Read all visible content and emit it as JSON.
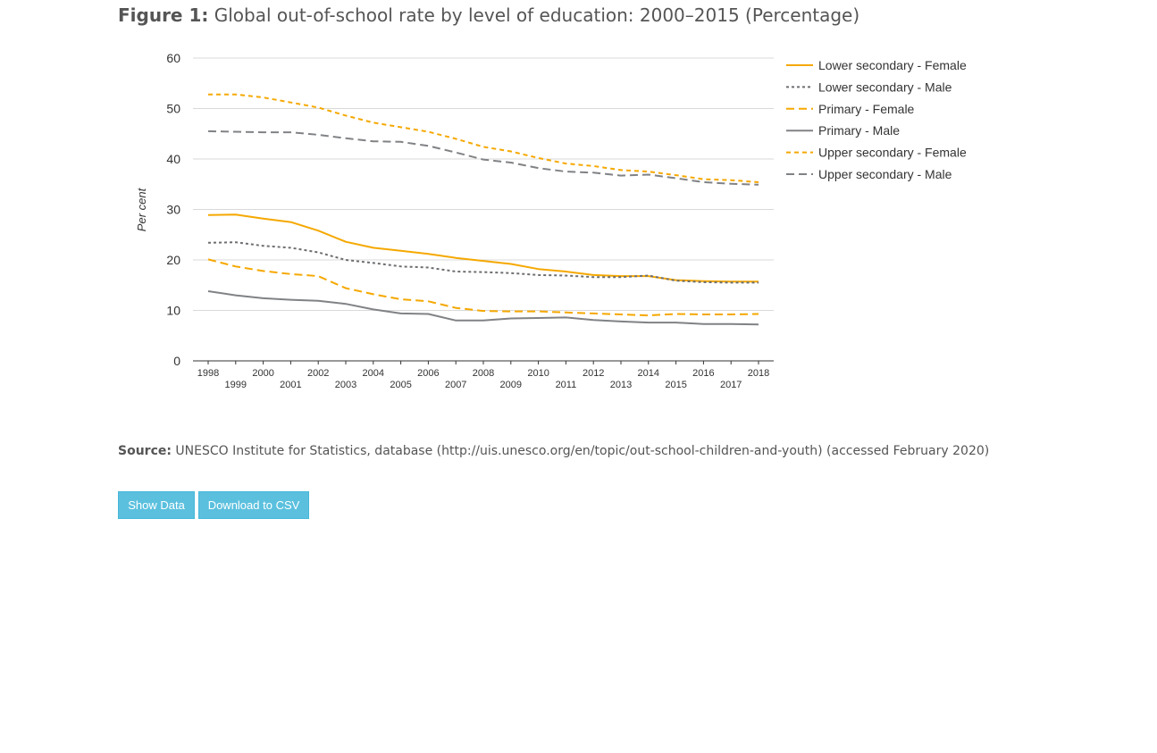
{
  "header": {
    "figure_label": "Figure 1:",
    "figure_title": "Global out-of-school rate by level of education: 2000–2015 (Percentage)"
  },
  "source": {
    "label": "Source:",
    "text": "UNESCO Institute for Statistics, database (http://uis.unesco.org/en/topic/out-school-children-and-youth) (accessed February 2020)"
  },
  "buttons": {
    "show_data": "Show Data",
    "download_csv": "Download to CSV"
  },
  "chart_data": {
    "type": "line",
    "title": "",
    "xlabel": "",
    "ylabel": "Per cent",
    "xlim": [
      1998,
      2018
    ],
    "ylim": [
      0,
      60
    ],
    "yticks": [
      0,
      10,
      20,
      30,
      40,
      50,
      60
    ],
    "x": [
      1998,
      1999,
      2000,
      2001,
      2002,
      2003,
      2004,
      2005,
      2006,
      2007,
      2008,
      2009,
      2010,
      2011,
      2012,
      2013,
      2014,
      2015,
      2016,
      2017,
      2018
    ],
    "grid": "horizontal",
    "legend_position": "right",
    "series": [
      {
        "name": "Lower secondary - Female",
        "color": "#f5a800",
        "style": "solid",
        "values": [
          28.9,
          29.0,
          28.2,
          27.5,
          25.8,
          23.6,
          22.4,
          21.8,
          21.2,
          20.4,
          19.8,
          19.2,
          18.2,
          17.7,
          17.0,
          16.8,
          16.8,
          16.0,
          15.8,
          15.7,
          15.7
        ]
      },
      {
        "name": "Lower secondary - Male",
        "color": "#6d6e71",
        "style": "dotted",
        "values": [
          23.4,
          23.5,
          22.8,
          22.4,
          21.5,
          20.0,
          19.4,
          18.7,
          18.5,
          17.7,
          17.6,
          17.4,
          17.0,
          16.9,
          16.6,
          16.6,
          16.9,
          15.9,
          15.6,
          15.5,
          15.5
        ]
      },
      {
        "name": "Primary - Female",
        "color": "#f5a800",
        "style": "dashed",
        "values": [
          20.1,
          18.7,
          17.8,
          17.2,
          16.8,
          14.4,
          13.2,
          12.2,
          11.8,
          10.5,
          9.9,
          9.8,
          9.8,
          9.6,
          9.4,
          9.2,
          9.0,
          9.3,
          9.2,
          9.2,
          9.3
        ]
      },
      {
        "name": "Primary - Male",
        "color": "#808285",
        "style": "solid",
        "values": [
          13.8,
          13.0,
          12.4,
          12.1,
          11.9,
          11.3,
          10.2,
          9.4,
          9.3,
          8.0,
          8.0,
          8.4,
          8.5,
          8.6,
          8.1,
          7.8,
          7.6,
          7.6,
          7.3,
          7.3,
          7.2
        ]
      },
      {
        "name": "Upper secondary - Female",
        "color": "#f5a800",
        "style": "short-dash",
        "values": [
          52.8,
          52.8,
          52.2,
          51.2,
          50.2,
          48.6,
          47.2,
          46.3,
          45.4,
          44.0,
          42.4,
          41.5,
          40.2,
          39.1,
          38.6,
          37.8,
          37.5,
          36.8,
          36.0,
          35.8,
          35.4
        ]
      },
      {
        "name": "Upper secondary - Male",
        "color": "#808285",
        "style": "dashed",
        "values": [
          45.5,
          45.4,
          45.3,
          45.3,
          44.8,
          44.1,
          43.5,
          43.4,
          42.6,
          41.3,
          39.9,
          39.3,
          38.2,
          37.5,
          37.3,
          36.7,
          36.9,
          36.2,
          35.4,
          35.1,
          34.9
        ]
      }
    ]
  }
}
